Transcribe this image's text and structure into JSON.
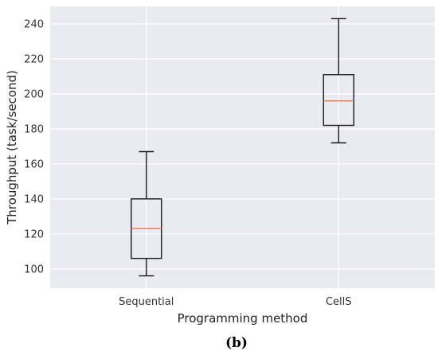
{
  "chart_data": {
    "type": "box",
    "xlabel": "Programming method",
    "ylabel": "Throughput (task/second)",
    "caption": "(b)",
    "categories": [
      "Sequential",
      "CellS"
    ],
    "boxes": [
      {
        "category": "Sequential",
        "whisker_low": 96,
        "q1": 106,
        "median": 123,
        "q3": 140,
        "whisker_high": 167
      },
      {
        "category": "CellS",
        "whisker_low": 172,
        "q1": 182,
        "median": 196,
        "q3": 211,
        "whisker_high": 243
      }
    ],
    "yticks": [
      100,
      120,
      140,
      160,
      180,
      200,
      220,
      240
    ],
    "ylim": [
      89,
      250
    ],
    "grid": true,
    "colors": {
      "background": "#eaeaf2",
      "grid": "#ffffff",
      "box": "#1a1a1a",
      "median": "#e8825a"
    }
  }
}
